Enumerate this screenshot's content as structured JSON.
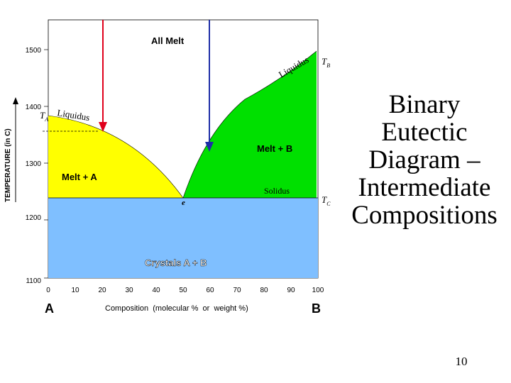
{
  "slide": {
    "title_lines": [
      "Binary",
      "Eutectic",
      "Diagram –",
      "Intermediate",
      "Compositions"
    ],
    "page_number": "10"
  },
  "diagram": {
    "y_axis_label_main": "TEMPERATURE",
    "y_axis_label_unit": "(in C)",
    "y_ticks": [
      "1500",
      "1400",
      "1300",
      "1200",
      "1100"
    ],
    "x_ticks": [
      "0",
      "10",
      "20",
      "30",
      "40",
      "50",
      "60",
      "70",
      "80",
      "90",
      "100"
    ],
    "x_axis_label": "Composition  (molecular %  or  weight %)",
    "end_label_left": "A",
    "end_label_right": "B",
    "region_labels": {
      "all_melt": "All Melt",
      "melt_a": "Melt + A",
      "melt_b": "Melt + B",
      "crystals": "Crystals A + B"
    },
    "curve_labels": {
      "liquidus_left": "Liquidus",
      "liquidus_right": "Liquidus",
      "solidus": "Solidus",
      "eutectic_point": "e"
    },
    "temperature_markers": {
      "ta": "T",
      "ta_sub": "A",
      "tb": "T",
      "tb_sub": "B",
      "tc": "T",
      "tc_sub": "C"
    },
    "colors": {
      "all_melt": "#ffffff",
      "melt_a": "#ffff00",
      "melt_b": "#00e000",
      "crystals": "#7fbfff",
      "arrow_left": "#e0001b",
      "arrow_right": "#1f2fa8"
    }
  }
}
